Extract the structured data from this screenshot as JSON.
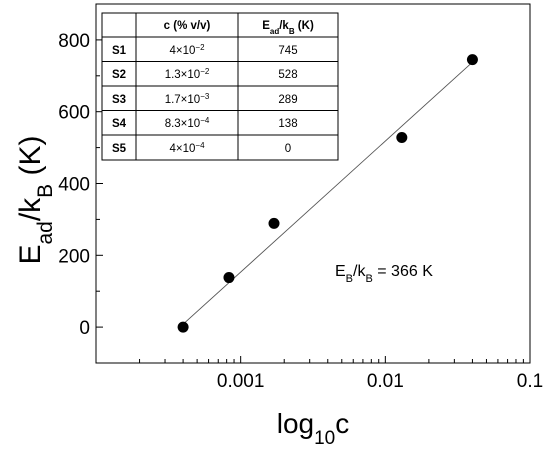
{
  "chart_data": {
    "type": "scatter",
    "xscale": "log",
    "xlim": [
      0.0001,
      0.1
    ],
    "ylim": [
      -100,
      900
    ],
    "xticks": [
      {
        "v": 0.001,
        "label": "0.001"
      },
      {
        "v": 0.01,
        "label": "0.01"
      },
      {
        "v": 0.1,
        "label": "0.1"
      }
    ],
    "yticks": [
      {
        "v": 0,
        "label": "0"
      },
      {
        "v": 200,
        "label": "200"
      },
      {
        "v": 400,
        "label": "400"
      },
      {
        "v": 600,
        "label": "600"
      },
      {
        "v": 800,
        "label": "800"
      }
    ],
    "xlabel": {
      "base": "log",
      "sub": "10",
      "tail": "c"
    },
    "ylabel": {
      "a": "E",
      "a_sub": "ad",
      "b": "/k",
      "b_sub": "B",
      "c": " (K)"
    },
    "points": [
      {
        "x": 0.04,
        "y": 745
      },
      {
        "x": 0.013,
        "y": 528
      },
      {
        "x": 0.0017,
        "y": 289
      },
      {
        "x": 0.00083,
        "y": 138
      },
      {
        "x": 0.0004,
        "y": 0
      }
    ],
    "fit_line": {
      "x": [
        0.0004,
        0.04
      ],
      "y": [
        8,
        738
      ]
    },
    "annotation": {
      "a": "E",
      "a_sub": "B",
      "b": "/k",
      "b_sub": "B",
      "c": " = 366 K"
    },
    "grid": false,
    "table": {
      "headers": [
        {
          "text": "",
          "sub": "",
          "tail": ""
        },
        {
          "text": "c (% v/v)",
          "sub": "",
          "tail": ""
        },
        {
          "text": "E",
          "sub": "ad",
          "tail": "/k",
          "sub2": "B",
          "tail2": " (K)"
        }
      ],
      "rows": [
        {
          "label": "S1",
          "c": "4×10",
          "c_exp": "−2",
          "e": "745"
        },
        {
          "label": "S2",
          "c": "1.3×10",
          "c_exp": "−2",
          "e": "528"
        },
        {
          "label": "S3",
          "c": "1.7×10",
          "c_exp": "−3",
          "e": "289"
        },
        {
          "label": "S4",
          "c": "8.3×10",
          "c_exp": "−4",
          "e": "138"
        },
        {
          "label": "S5",
          "c": "4×10",
          "c_exp": "−4",
          "e": "0"
        }
      ]
    }
  }
}
